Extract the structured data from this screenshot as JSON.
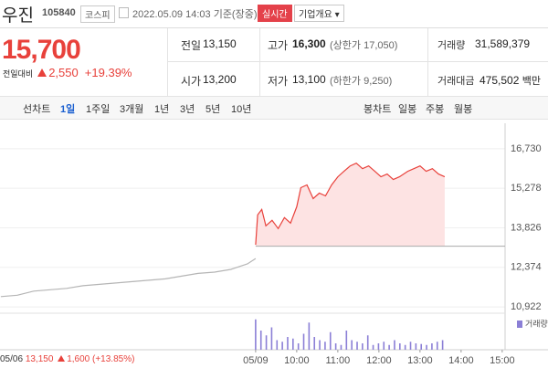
{
  "header": {
    "name": "우진",
    "code": "105840",
    "market": "코스피",
    "timestamp": "2022.05.09 14:03 기준(장중)",
    "realtime": "실시간",
    "company": "기업개요"
  },
  "quote": {
    "price": "15,700",
    "change_label": "전일대비",
    "change": "2,550",
    "change_pct": "+19.39%",
    "stats": [
      [
        {
          "label": "전일",
          "value": "13,150"
        },
        {
          "label": "고가",
          "value": "16,300",
          "note": "(상한가 17,050)"
        },
        {
          "label": "거래량",
          "value": "31,589,379"
        }
      ],
      [
        {
          "label": "시가",
          "value": "13,200"
        },
        {
          "label": "저가",
          "value": "13,100",
          "note": "(하한가 9,250)"
        },
        {
          "label": "거래대금",
          "value": "475,502",
          "unit": "백만"
        }
      ]
    ]
  },
  "tabs": {
    "line_label": "선차트",
    "periods": [
      "1일",
      "1주일",
      "3개월",
      "1년",
      "3년",
      "5년",
      "10년"
    ],
    "active_period": 0,
    "candle_label": "봉차트",
    "candle_periods": [
      "일봉",
      "주봉",
      "월봉"
    ]
  },
  "chart_data": [
    {
      "type": "line",
      "base": 13150,
      "base_color": "#aaaaaa",
      "xlim": [
        2.78,
        15.07
      ],
      "ylim": [
        10790,
        17330
      ],
      "xticks": [
        {
          "value": 9,
          "label": "05/09"
        },
        {
          "value": 10,
          "label": "10:00"
        },
        {
          "value": 11,
          "label": "11:00"
        },
        {
          "value": 12,
          "label": "12:00"
        },
        {
          "value": 13,
          "label": "13:00"
        },
        {
          "value": 14,
          "label": "14:00"
        },
        {
          "value": 15,
          "label": "15:00"
        }
      ],
      "yticks": [
        {
          "value": 16730,
          "label": "16,730"
        },
        {
          "value": 15278,
          "label": "15,278"
        },
        {
          "value": 13826,
          "label": "13,826"
        },
        {
          "value": 12374,
          "label": "12,374"
        },
        {
          "value": 10922,
          "label": "10,922"
        }
      ],
      "grid": true,
      "series": [
        {
          "color": "#b5b5b5",
          "x": [
            2.8,
            3.2,
            3.6,
            4.0,
            4.4,
            4.8,
            5.2,
            5.6,
            6.0,
            6.4,
            6.8,
            7.2,
            7.6,
            8.0,
            8.4,
            8.8,
            9.0
          ],
          "values": [
            11300,
            11350,
            11500,
            11550,
            11600,
            11700,
            11750,
            11800,
            11850,
            11900,
            11950,
            12050,
            12150,
            12200,
            12300,
            12500,
            12700
          ]
        },
        {
          "color": "#e8413b",
          "fill": "#fde3e3",
          "x": [
            9.0,
            9.05,
            9.15,
            9.25,
            9.4,
            9.55,
            9.7,
            9.85,
            10.0,
            10.1,
            10.25,
            10.4,
            10.55,
            10.7,
            10.85,
            11.0,
            11.15,
            11.3,
            11.45,
            11.6,
            11.75,
            11.9,
            12.05,
            12.2,
            12.35,
            12.5,
            12.7,
            12.85,
            13.0,
            13.15,
            13.3,
            13.45,
            13.6
          ],
          "values": [
            13200,
            14300,
            14500,
            13900,
            14100,
            13800,
            14200,
            14000,
            14600,
            15300,
            15400,
            14900,
            15100,
            15000,
            15400,
            15700,
            15900,
            16100,
            16200,
            16000,
            16100,
            15900,
            15700,
            15800,
            15600,
            15700,
            15900,
            16000,
            16100,
            15900,
            16000,
            15800,
            15700
          ]
        }
      ]
    },
    {
      "type": "bar",
      "xlim": [
        2.78,
        15.07
      ],
      "ylim": [
        0,
        100
      ],
      "series": [
        {
          "name": "거래량",
          "color": "#8b7fd6",
          "x": [
            9,
            9.13,
            9.26,
            9.39,
            9.52,
            9.65,
            9.78,
            9.91,
            10.04,
            10.17,
            10.3,
            10.43,
            10.56,
            10.69,
            10.82,
            10.95,
            11.08,
            11.21,
            11.34,
            11.47,
            11.6,
            11.73,
            11.86,
            11.99,
            12.12,
            12.25,
            12.38,
            12.51,
            12.64,
            12.77,
            12.9,
            13.03,
            13.16,
            13.29,
            13.42,
            13.55
          ],
          "values": [
            95,
            60,
            45,
            70,
            30,
            25,
            40,
            35,
            20,
            50,
            85,
            40,
            30,
            25,
            55,
            20,
            15,
            60,
            30,
            25,
            20,
            45,
            15,
            20,
            25,
            15,
            30,
            20,
            15,
            25,
            20,
            18,
            15,
            20,
            25,
            30
          ]
        }
      ]
    }
  ],
  "footer": {
    "date": "05/06",
    "close": "13,150",
    "change": "1,600",
    "change_pct": "(+13.85%)"
  }
}
